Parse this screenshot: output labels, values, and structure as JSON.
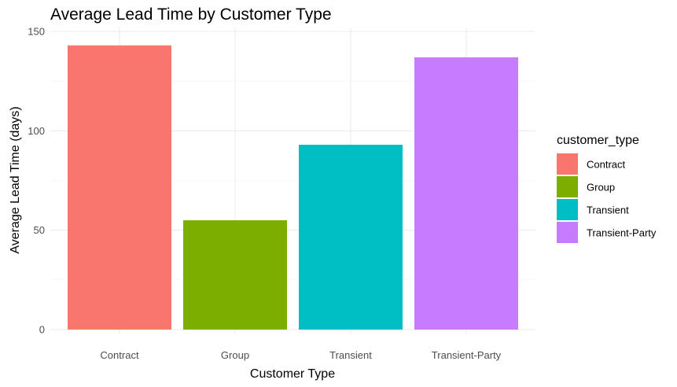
{
  "chart_data": {
    "type": "bar",
    "title": "Average Lead Time by Customer Type",
    "xlabel": "Customer Type",
    "ylabel": "Average Lead Time (days)",
    "categories": [
      "Contract",
      "Group",
      "Transient",
      "Transient-Party"
    ],
    "values": [
      143,
      55,
      93,
      137
    ],
    "colors": [
      "#F8766D",
      "#7CAE00",
      "#00BFC4",
      "#C77CFF"
    ],
    "ylim": [
      0,
      150
    ],
    "yticks": [
      0,
      50,
      100,
      150
    ],
    "grid": true,
    "legend": {
      "title": "customer_type",
      "placement": "right",
      "items": [
        "Contract",
        "Group",
        "Transient",
        "Transient-Party"
      ]
    }
  }
}
